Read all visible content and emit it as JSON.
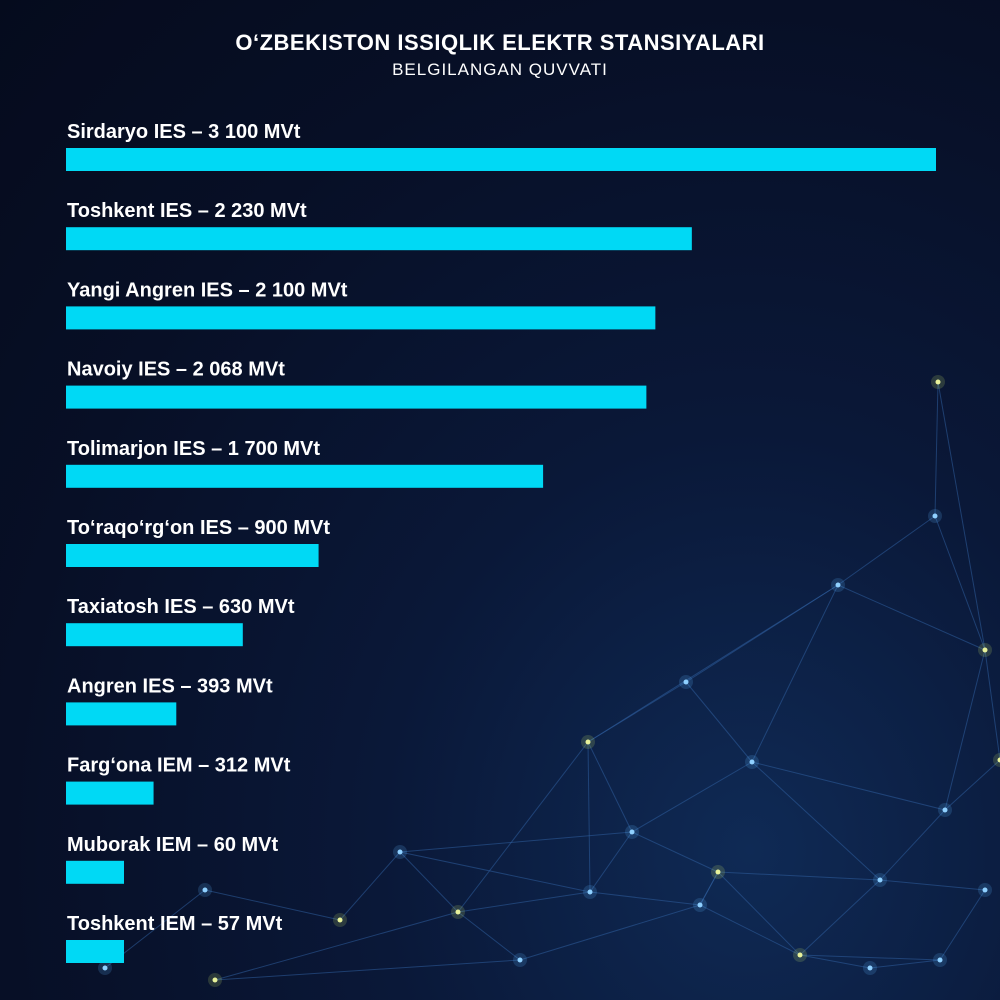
{
  "chart_data": {
    "type": "bar",
    "orientation": "horizontal",
    "title": "O‘ZBEKISTON ISSIQLIK ELEKTR STANSIYALARI",
    "subtitle": "BELGILANGAN QUVVATI",
    "unit": "MVt",
    "categories": [
      "Sirdaryo IES",
      "Toshkent IES",
      "Yangi Angren IES",
      "Navoiy IES",
      "Tolimarjon IES",
      "To‘raqo‘rg‘on IES",
      "Taxiatosh IES",
      "Angren IES",
      "Farg‘ona IEM",
      "Muborak IEM",
      "Toshkent IEM"
    ],
    "values": [
      3100,
      2230,
      2100,
      2068,
      1700,
      900,
      630,
      393,
      312,
      60,
      57
    ],
    "labels": [
      "Sirdaryo IES – 3 100 MVt",
      "Toshkent IES – 2 230 MVt",
      "Yangi Angren IES – 2 100 MVt",
      "Navoiy IES – 2 068 MVt",
      "Tolimarjon IES – 1 700 MVt",
      "To‘raqo‘rg‘on IES – 900 MVt",
      "Taxiatosh IES – 630 MVt",
      "Angren IES – 393 MVt",
      "Farg‘ona IEM – 312 MVt",
      "Muborak IEM – 60 MVt",
      "Toshkent IEM – 57 MVt"
    ],
    "bar_color": "#00d9f5"
  }
}
